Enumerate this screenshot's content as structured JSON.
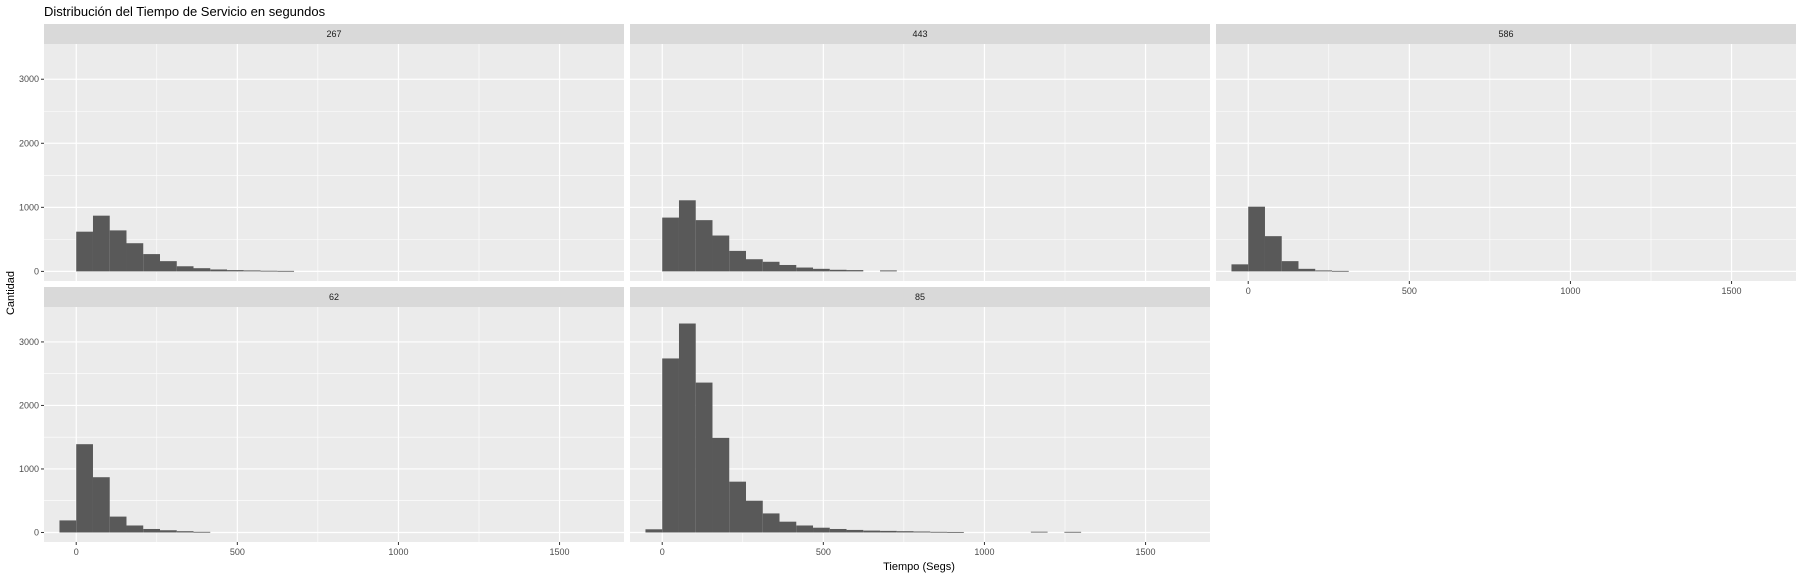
{
  "chart_data": {
    "type": "bar",
    "subtype": "faceted-histogram",
    "title": "Distribución del Tiempo de Servicio en segundos",
    "xlabel": "Tiempo (Segs)",
    "ylabel": "Cantidad",
    "xlim": [
      -100,
      1700
    ],
    "ylim": [
      -150,
      3550
    ],
    "x_ticks": [
      0,
      500,
      1000,
      1500
    ],
    "y_ticks": [
      0,
      1000,
      2000,
      3000
    ],
    "bin_width": 52,
    "grid": true,
    "colors": {
      "bar": "#595959",
      "panel": "#ebebeb",
      "strip": "#d9d9d9",
      "grid": "#ffffff"
    },
    "facets": [
      {
        "label": "267",
        "bins_start": [
          0,
          52,
          104,
          156,
          208,
          260,
          312,
          364,
          416,
          468,
          520,
          572,
          624
        ],
        "values": [
          620,
          870,
          640,
          440,
          270,
          160,
          80,
          50,
          30,
          20,
          15,
          10,
          8
        ]
      },
      {
        "label": "443",
        "bins_start": [
          0,
          52,
          104,
          156,
          208,
          260,
          312,
          364,
          416,
          468,
          520,
          572,
          676
        ],
        "values": [
          840,
          1110,
          800,
          560,
          320,
          190,
          150,
          100,
          60,
          40,
          25,
          20,
          15
        ]
      },
      {
        "label": "586",
        "bins_start": [
          -52,
          0,
          52,
          104,
          156,
          208,
          260
        ],
        "values": [
          110,
          1010,
          550,
          160,
          40,
          15,
          8
        ]
      },
      {
        "label": "62",
        "bins_start": [
          -52,
          0,
          52,
          104,
          156,
          208,
          260,
          312,
          364
        ],
        "values": [
          190,
          1390,
          870,
          250,
          110,
          55,
          35,
          20,
          10
        ]
      },
      {
        "label": "85",
        "bins_start": [
          -52,
          0,
          52,
          104,
          156,
          208,
          260,
          312,
          364,
          416,
          468,
          520,
          572,
          624,
          676,
          728,
          780,
          832,
          884,
          1144,
          1248
        ],
        "values": [
          50,
          2740,
          3290,
          2360,
          1490,
          800,
          500,
          300,
          170,
          110,
          75,
          55,
          40,
          30,
          25,
          20,
          15,
          10,
          8,
          12,
          10
        ]
      }
    ]
  }
}
